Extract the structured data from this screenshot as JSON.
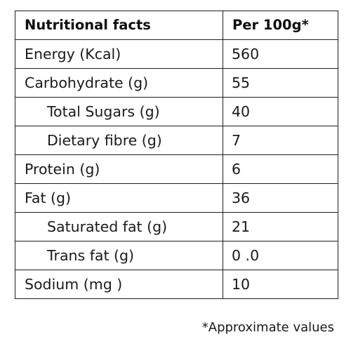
{
  "table": {
    "headers": [
      "Nutritional facts",
      "Per 100g*"
    ],
    "rows": [
      {
        "label": "Energy (Kcal)",
        "value": "560",
        "sub": false
      },
      {
        "label": "Carbohydrate (g)",
        "value": "55",
        "sub": false
      },
      {
        "label": "Total Sugars (g)",
        "value": "40",
        "sub": true
      },
      {
        "label": "Dietary fibre (g)",
        "value": "7",
        "sub": true
      },
      {
        "label": "Protein (g)",
        "value": "6",
        "sub": false
      },
      {
        "label": "Fat (g)",
        "value": "36",
        "sub": false
      },
      {
        "label": "Saturated fat (g)",
        "value": "21",
        "sub": true
      },
      {
        "label": "Trans fat (g)",
        "value": "0 .0",
        "sub": true
      },
      {
        "label": "Sodium (mg )",
        "value": "10",
        "sub": false
      }
    ]
  },
  "footnote": "*Approximate values"
}
